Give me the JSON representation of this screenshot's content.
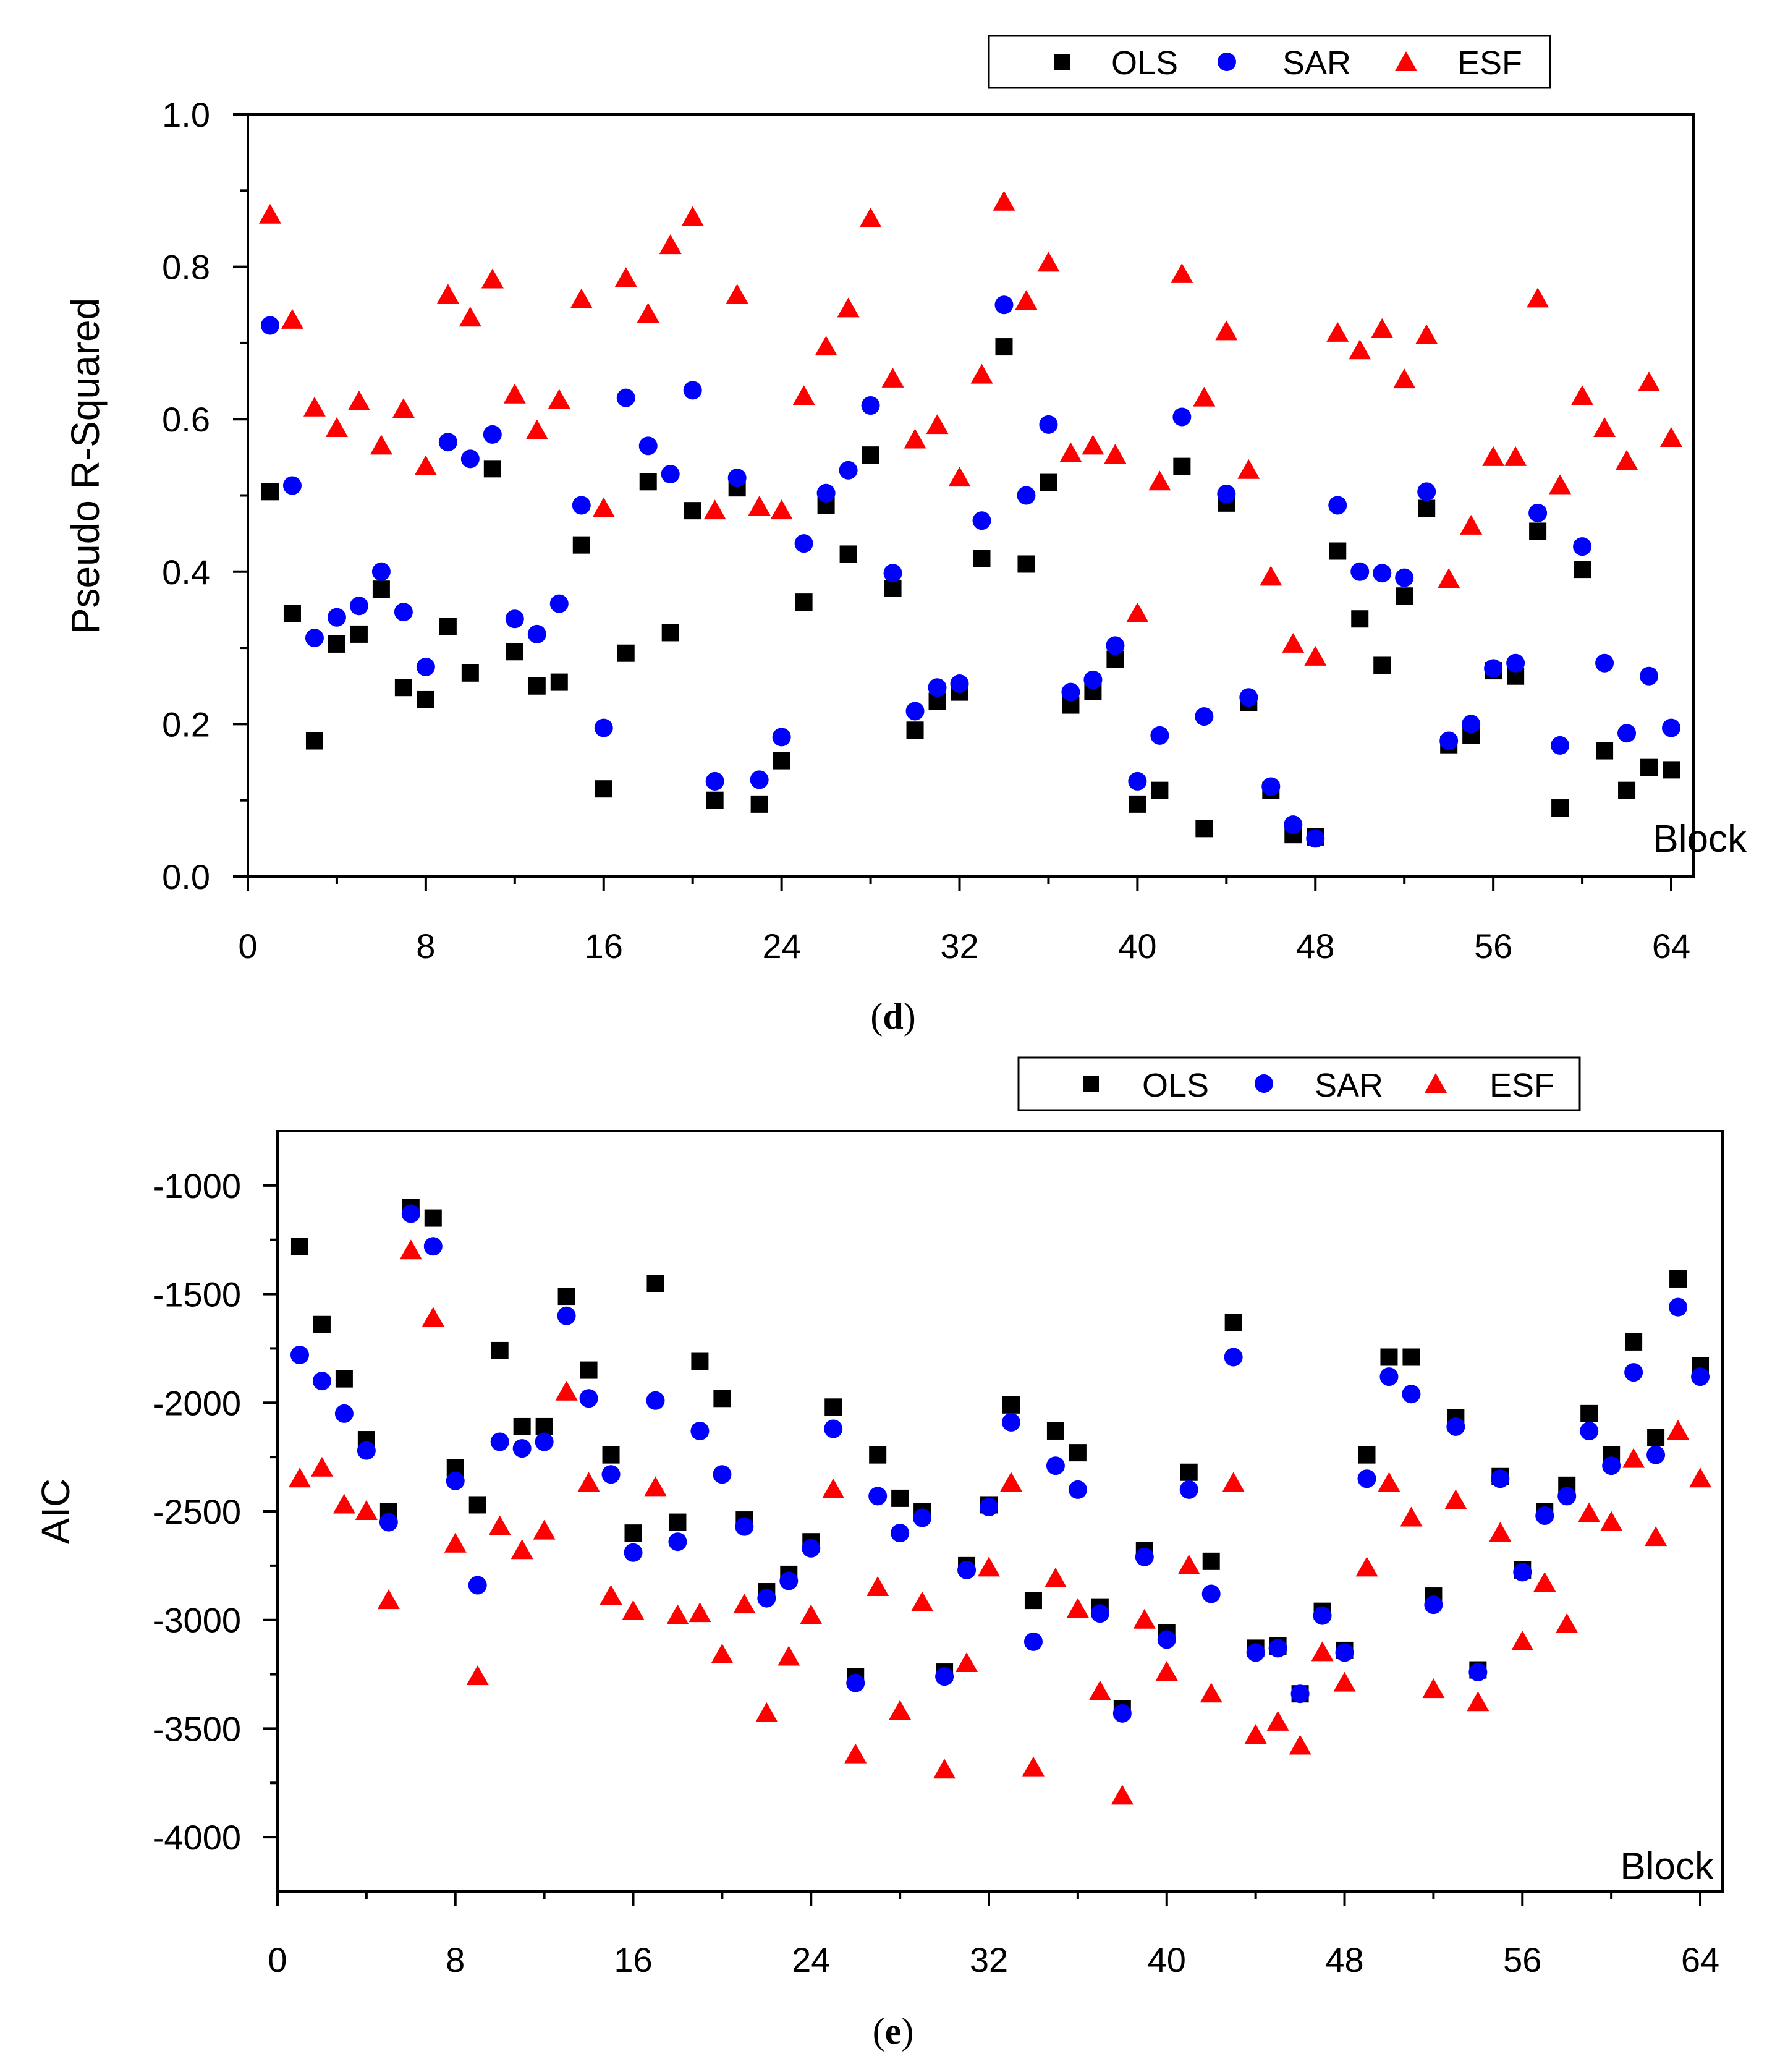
{
  "colors": {
    "OLS": "#000000",
    "SAR": "#0000ff",
    "ESF": "#ff0000",
    "axis": "#000000"
  },
  "legend_entries": [
    {
      "name": "OLS",
      "marker": "square"
    },
    {
      "name": "SAR",
      "marker": "circle"
    },
    {
      "name": "ESF",
      "marker": "triangle"
    }
  ],
  "chart_data": [
    {
      "type": "scatter",
      "panel_label": "d",
      "ylabel": "Pseudo R-Squared",
      "xlabel": "Block",
      "xlim": [
        0,
        65
      ],
      "ylim": [
        0,
        1.0
      ],
      "x_ticks": [
        0,
        8,
        16,
        24,
        32,
        40,
        48,
        56,
        64
      ],
      "x_tick_labels": [
        "0",
        "8",
        "16",
        "24",
        "32",
        "40",
        "48",
        "56",
        "64"
      ],
      "y_ticks": [
        0,
        0.2,
        0.4,
        0.6,
        0.8,
        1.0
      ],
      "y_tick_labels": [
        "0.0",
        "0.2",
        "0.4",
        "0.6",
        "0.8",
        "1.0"
      ],
      "legend_position": "top-right",
      "series": [
        {
          "name": "OLS",
          "marker": "square",
          "values": [
            0.505,
            0.345,
            0.178,
            0.305,
            0.318,
            0.377,
            0.248,
            0.232,
            0.328,
            0.267,
            0.535,
            0.295,
            0.25,
            0.255,
            0.435,
            0.115,
            0.293,
            0.518,
            0.32,
            0.48,
            0.1,
            0.51,
            0.095,
            0.152,
            0.36,
            0.487,
            0.423,
            0.553,
            0.378,
            0.192,
            0.23,
            0.242,
            0.417,
            0.695,
            0.41,
            0.517,
            0.225,
            0.243,
            0.285,
            0.095,
            0.113,
            0.538,
            0.063,
            0.49,
            0.228,
            0.113,
            0.055,
            0.052,
            0.427,
            0.338,
            0.277,
            0.368,
            0.483,
            0.173,
            0.185,
            0.27,
            0.263,
            0.453,
            0.09,
            0.403,
            0.165,
            0.113,
            0.143,
            0.14
          ]
        },
        {
          "name": "SAR",
          "marker": "circle",
          "values": [
            0.723,
            0.513,
            0.313,
            0.34,
            0.355,
            0.4,
            0.347,
            0.275,
            0.57,
            0.548,
            0.58,
            0.338,
            0.318,
            0.358,
            0.487,
            0.195,
            0.628,
            0.565,
            0.528,
            0.638,
            0.125,
            0.523,
            0.127,
            0.183,
            0.437,
            0.503,
            0.533,
            0.618,
            0.398,
            0.217,
            0.248,
            0.253,
            0.467,
            0.75,
            0.5,
            0.593,
            0.242,
            0.258,
            0.303,
            0.125,
            0.185,
            0.603,
            0.21,
            0.502,
            0.235,
            0.118,
            0.068,
            0.05,
            0.487,
            0.4,
            0.398,
            0.392,
            0.505,
            0.178,
            0.2,
            0.273,
            0.28,
            0.477,
            0.172,
            0.433,
            0.28,
            0.188,
            0.263,
            0.195
          ]
        },
        {
          "name": "ESF",
          "marker": "triangle",
          "values": [
            0.868,
            0.73,
            0.615,
            0.588,
            0.623,
            0.565,
            0.613,
            0.538,
            0.763,
            0.733,
            0.783,
            0.632,
            0.585,
            0.625,
            0.757,
            0.483,
            0.785,
            0.738,
            0.828,
            0.865,
            0.48,
            0.763,
            0.485,
            0.48,
            0.63,
            0.695,
            0.745,
            0.863,
            0.653,
            0.573,
            0.592,
            0.523,
            0.658,
            0.885,
            0.755,
            0.805,
            0.555,
            0.565,
            0.553,
            0.345,
            0.518,
            0.79,
            0.628,
            0.715,
            0.533,
            0.393,
            0.305,
            0.288,
            0.713,
            0.69,
            0.718,
            0.652,
            0.71,
            0.39,
            0.46,
            0.55,
            0.55,
            0.758,
            0.513,
            0.63,
            0.588,
            0.545,
            0.648,
            0.575
          ]
        }
      ]
    },
    {
      "type": "scatter",
      "panel_label": "e",
      "ylabel": "AIC",
      "xlabel": "Block",
      "xlim": [
        0,
        65
      ],
      "ylim": [
        -4250,
        -750
      ],
      "x_ticks": [
        0,
        8,
        16,
        24,
        32,
        40,
        48,
        56,
        64
      ],
      "x_tick_labels": [
        "0",
        "8",
        "16",
        "24",
        "32",
        "40",
        "48",
        "56",
        "64"
      ],
      "y_ticks": [
        -4000,
        -3500,
        -3000,
        -2500,
        -2000,
        -1500,
        -1000
      ],
      "y_tick_labels": [
        "-4000",
        "-3500",
        "-3000",
        "-2500",
        "-2000",
        "-1500",
        "-1000"
      ],
      "legend_position": "top-right",
      "series": [
        {
          "name": "OLS",
          "marker": "square",
          "values": [
            -1280,
            -1640,
            -1890,
            -2170,
            -2500,
            -1100,
            -1150,
            -2300,
            -2470,
            -1760,
            -2110,
            -2110,
            -1510,
            -1850,
            -2240,
            -2600,
            -1450,
            -2550,
            -1810,
            -1980,
            -2540,
            -2870,
            -2790,
            -2640,
            -2020,
            -3260,
            -2240,
            -2440,
            -2500,
            -3240,
            -2750,
            -2470,
            -2010,
            -2910,
            -2130,
            -2230,
            -2940,
            -3410,
            -2680,
            -3060,
            -2320,
            -2730,
            -1630,
            -3130,
            -3120,
            -3340,
            -2960,
            -3140,
            -2240,
            -1790,
            -1790,
            -2890,
            -2070,
            -3230,
            -2340,
            -2770,
            -2500,
            -2380,
            -2050,
            -2240,
            -1720,
            -2160,
            -1430,
            -1830
          ]
        },
        {
          "name": "SAR",
          "marker": "circle",
          "values": [
            -1780,
            -1900,
            -2050,
            -2220,
            -2550,
            -1130,
            -1280,
            -2360,
            -2840,
            -2180,
            -2210,
            -2180,
            -1600,
            -1980,
            -2330,
            -2690,
            -1990,
            -2640,
            -2130,
            -2330,
            -2570,
            -2900,
            -2820,
            -2670,
            -2120,
            -3290,
            -2430,
            -2600,
            -2530,
            -3260,
            -2770,
            -2480,
            -2090,
            -3100,
            -2290,
            -2400,
            -2970,
            -3430,
            -2710,
            -3090,
            -2400,
            -2880,
            -1790,
            -3150,
            -3130,
            -3340,
            -2980,
            -3150,
            -2350,
            -1880,
            -1960,
            -2930,
            -2110,
            -3240,
            -2350,
            -2780,
            -2520,
            -2430,
            -2130,
            -2290,
            -1860,
            -2240,
            -1560,
            -1880
          ]
        },
        {
          "name": "ESF",
          "marker": "triangle",
          "values": [
            -2350,
            -2300,
            -2470,
            -2500,
            -2910,
            -1300,
            -1610,
            -2650,
            -3260,
            -2570,
            -2680,
            -2590,
            -1950,
            -2370,
            -2890,
            -2960,
            -2390,
            -2980,
            -2970,
            -3160,
            -2930,
            -3430,
            -3170,
            -2980,
            -2400,
            -3620,
            -2850,
            -3420,
            -2920,
            -3690,
            -3200,
            -2760,
            -2370,
            -3680,
            -2810,
            -2950,
            -3330,
            -3810,
            -3000,
            -3240,
            -2750,
            -3340,
            -2370,
            -3530,
            -3470,
            -3580,
            -3150,
            -3290,
            -2760,
            -2370,
            -2530,
            -3320,
            -2450,
            -3380,
            -2600,
            -3100,
            -2830,
            -3020,
            -2510,
            -2550,
            -2260,
            -2620,
            -2130,
            -2350
          ]
        }
      ]
    }
  ]
}
